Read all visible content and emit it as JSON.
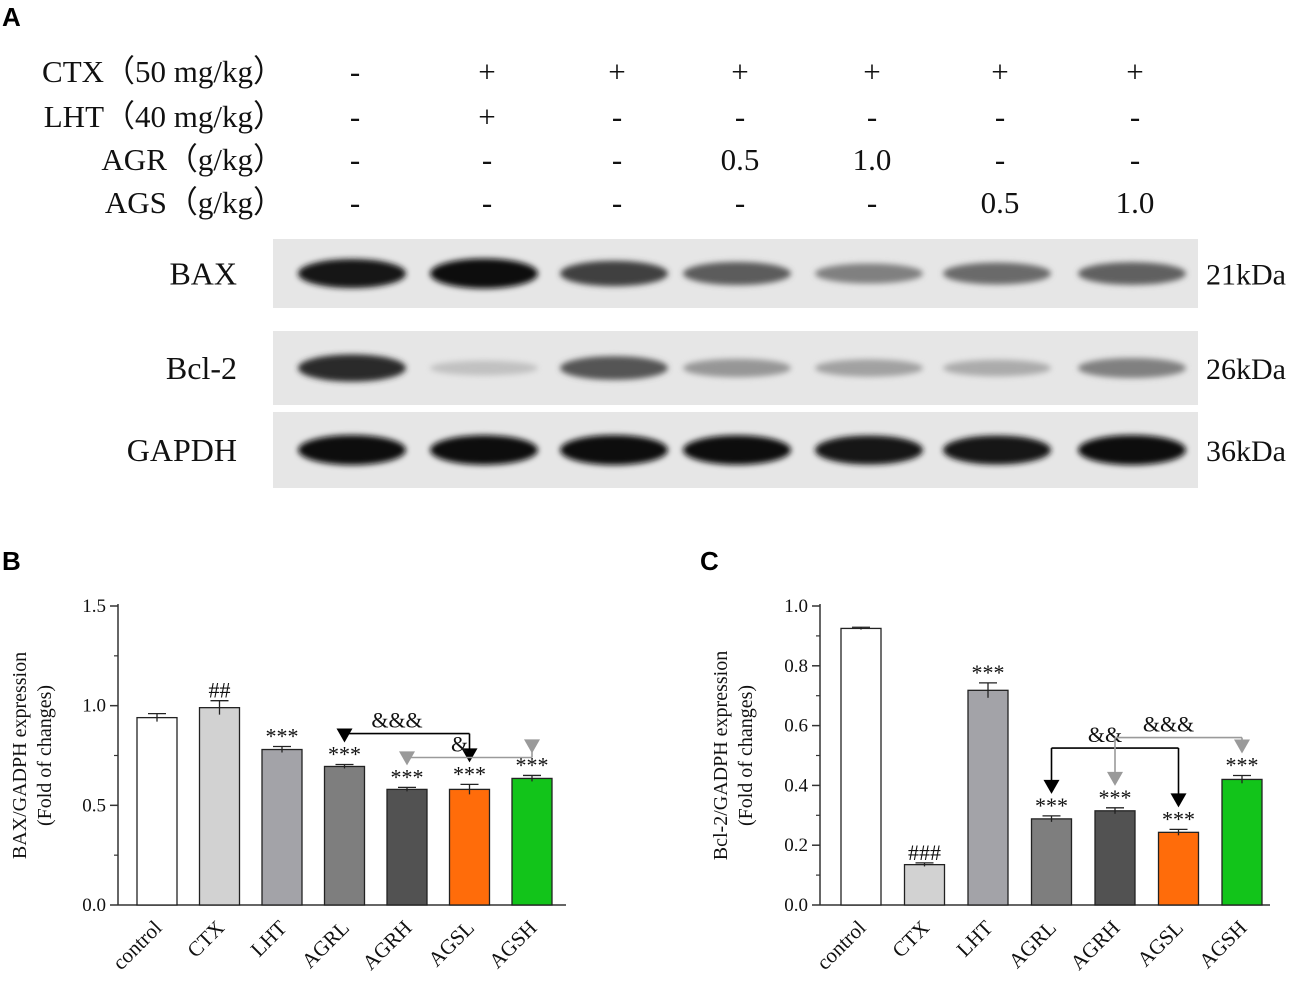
{
  "panels": {
    "a": "A",
    "b": "B",
    "c": "C"
  },
  "blot": {
    "conditions": [
      {
        "label": "CTX（50 mg/kg）",
        "values": [
          "-",
          "+",
          "+",
          "+",
          "+",
          "+",
          "+"
        ]
      },
      {
        "label": "LHT（40 mg/kg）",
        "values": [
          "-",
          "+",
          "-",
          "-",
          "-",
          "-",
          "-"
        ]
      },
      {
        "label": "AGR（g/kg）",
        "values": [
          "-",
          "-",
          "-",
          "0.5",
          "1.0",
          "-",
          "-"
        ]
      },
      {
        "label": "AGS（g/kg）",
        "values": [
          "-",
          "-",
          "-",
          "-",
          "-",
          "0.5",
          "1.0"
        ]
      }
    ],
    "rows": [
      {
        "name": "BAX",
        "kda": "21kDa",
        "intensity": [
          0.95,
          1.0,
          0.75,
          0.62,
          0.45,
          0.55,
          0.6
        ]
      },
      {
        "name": "Bcl-2",
        "kda": "26kDa",
        "intensity": [
          0.85,
          0.15,
          0.65,
          0.35,
          0.3,
          0.25,
          0.45
        ]
      },
      {
        "name": "GAPDH",
        "kda": "36kDa",
        "intensity": [
          1.0,
          0.98,
          1.0,
          0.97,
          0.95,
          0.95,
          1.0
        ]
      }
    ]
  },
  "chart_data": [
    {
      "type": "bar",
      "panel": "B",
      "categories": [
        "control",
        "CTX",
        "LHT",
        "AGRL",
        "AGRH",
        "AGSL",
        "AGSH"
      ],
      "values": [
        0.94,
        0.99,
        0.78,
        0.695,
        0.58,
        0.58,
        0.635
      ],
      "errors": [
        0.02,
        0.035,
        0.015,
        0.01,
        0.01,
        0.025,
        0.015
      ],
      "colors": [
        "#ffffff",
        "#d2d2d2",
        "#a3a3a8",
        "#7e7e7e",
        "#525252",
        "#ff6c0a",
        "#12c41a"
      ],
      "labels": [
        "",
        "##",
        "***",
        "***",
        "***",
        "***",
        "***"
      ],
      "ylabel": "BAX/GADPH expression",
      "ylabel2": "(Fold of changes)",
      "yticks": [
        "0.0",
        "0.5",
        "1.0",
        "1.5"
      ],
      "ylim": [
        0,
        1.5
      ],
      "comparisons": [
        {
          "from": 3,
          "to": 5,
          "label": "&&&",
          "color": "#000000",
          "level": 0.86
        },
        {
          "from": 4,
          "to": 6,
          "label": "&",
          "color": "#9a9a9a",
          "level": 0.74
        }
      ]
    },
    {
      "type": "bar",
      "panel": "C",
      "categories": [
        "control",
        "CTX",
        "LHT",
        "AGRL",
        "AGRH",
        "AGSL",
        "AGSH"
      ],
      "values": [
        0.925,
        0.135,
        0.718,
        0.288,
        0.315,
        0.243,
        0.42
      ],
      "errors": [
        0.004,
        0.006,
        0.025,
        0.01,
        0.01,
        0.01,
        0.013
      ],
      "colors": [
        "#ffffff",
        "#d2d2d2",
        "#a3a3a8",
        "#7e7e7e",
        "#525252",
        "#ff6c0a",
        "#12c41a"
      ],
      "labels": [
        "",
        "###",
        "***",
        "***",
        "***",
        "***",
        "***"
      ],
      "ylabel": "Bcl-2/GADPH expression",
      "ylabel2": "(Fold of changes)",
      "yticks": [
        "0.0",
        "0.2",
        "0.4",
        "0.6",
        "0.8",
        "1.0"
      ],
      "ylim": [
        0,
        1.0
      ],
      "comparisons": [
        {
          "from": 3,
          "to": 5,
          "label": "&&",
          "color": "#000000",
          "level": 0.525
        },
        {
          "from": 4,
          "to": 6,
          "label": "&&&",
          "color": "#9a9a9a",
          "level": 0.56
        }
      ]
    }
  ]
}
